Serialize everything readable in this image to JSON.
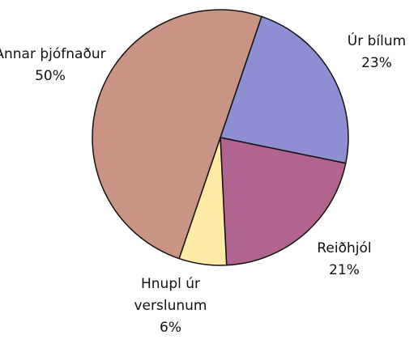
{
  "chart_data": {
    "type": "pie",
    "categories": [
      "Úr bílum",
      "Reiðhjól",
      "Hnupl úr verslunum",
      "Annar þjófnaður"
    ],
    "values": [
      23,
      21,
      6,
      50
    ],
    "value_labels": [
      "23%",
      "21%",
      "6%",
      "50%"
    ],
    "colors": [
      "#8d8fd2",
      "#b0648f",
      "#ffeaa6",
      "#c99484"
    ]
  }
}
